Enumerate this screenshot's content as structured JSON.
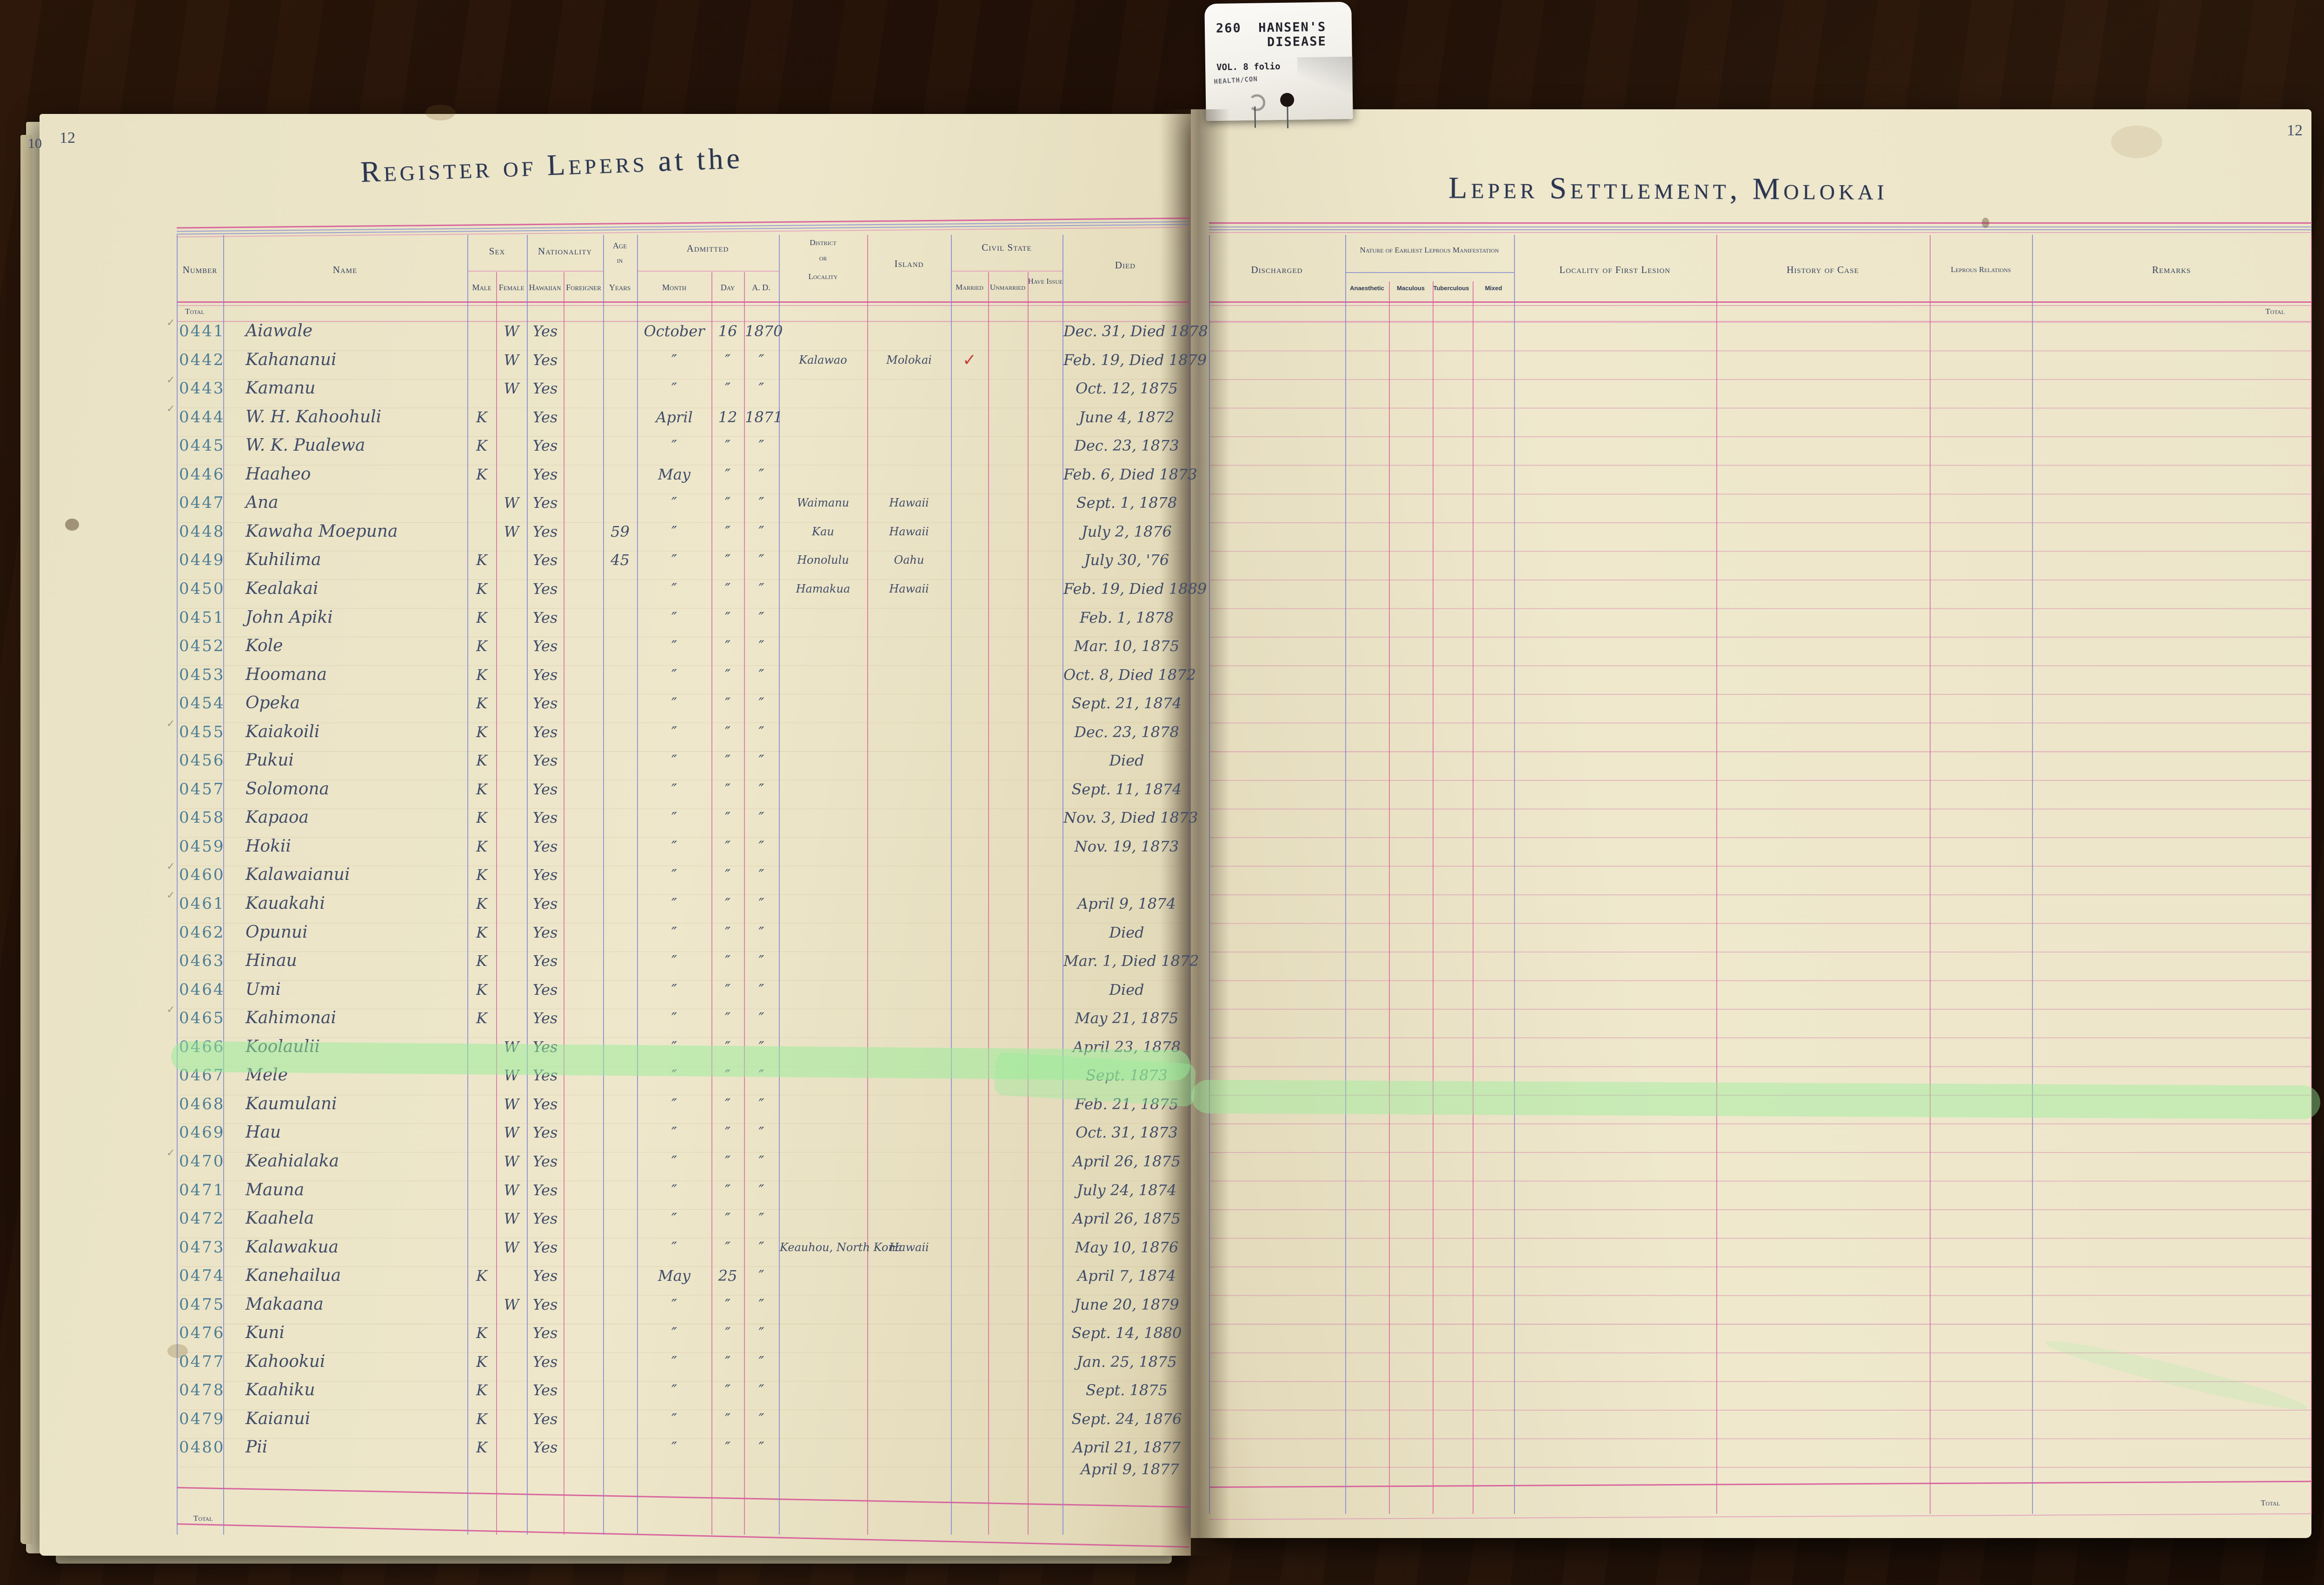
{
  "tab": {
    "number_and_title": "260  HANSEN'S\n      DISEASE",
    "volume": "VOL. 8 folio",
    "department": "HEALTH/CON"
  },
  "left_page": {
    "page_number_under": "10",
    "page_number": "12",
    "title_main": "Register of Lepers",
    "title_suffix": " at the",
    "headers": {
      "number": "Number",
      "name": "Name",
      "sex": "Sex",
      "male": "Male",
      "female": "Female",
      "nationality": "Nationality",
      "hawaiian": "Hawaiian",
      "foreigner": "Foreigner",
      "age_1": "Age",
      "age_2": "in",
      "age_3": "Years",
      "admitted": "Admitted",
      "month": "Month",
      "day": "Day",
      "ad": "A. D.",
      "district_1": "District",
      "district_2": "or",
      "district_3": "Locality",
      "island": "Island",
      "civil_state": "Civil State",
      "married": "Married",
      "unmarried": "Unmarried",
      "have_issue": "Have Issue",
      "died": "Died"
    },
    "total_top": "Total",
    "total_bottom": "Total",
    "extra_died_line": "April 9, 1877",
    "rows": [
      {
        "num": "0441",
        "name": "Aiawale",
        "female": "W",
        "haw": "Yes",
        "mo": "October",
        "dy": "16",
        "yr": "1870",
        "died": "Dec. 31, Died 1878",
        "tick": true
      },
      {
        "num": "0442",
        "name": "Kahananui",
        "female": "W",
        "haw": "Yes",
        "mo": "″",
        "dy": "″",
        "yr": "″",
        "dist": "Kalawao",
        "isl": "Molokai",
        "mar": "✓",
        "died": "Feb. 19, Died 1879"
      },
      {
        "num": "0443",
        "name": "Kamanu",
        "female": "W",
        "haw": "Yes",
        "mo": "″",
        "dy": "″",
        "yr": "″",
        "died": "Oct. 12, 1875",
        "tick": true
      },
      {
        "num": "0444",
        "name": "W. H. Kahoohuli",
        "male": "K",
        "haw": "Yes",
        "mo": "April",
        "dy": "12",
        "yr": "1871",
        "died": "June 4, 1872",
        "tick": true
      },
      {
        "num": "0445",
        "name": "W. K. Pualewa",
        "male": "K",
        "haw": "Yes",
        "mo": "″",
        "dy": "″",
        "yr": "″",
        "died": "Dec. 23, 1873"
      },
      {
        "num": "0446",
        "name": "Haaheo",
        "male": "K",
        "haw": "Yes",
        "mo": "May",
        "dy": "″",
        "yr": "″",
        "died": "Feb. 6, Died 1873"
      },
      {
        "num": "0447",
        "name": "Ana",
        "female": "W",
        "haw": "Yes",
        "mo": "″",
        "dy": "″",
        "yr": "″",
        "dist": "Waimanu",
        "isl": "Hawaii",
        "died": "Sept. 1, 1878"
      },
      {
        "num": "0448",
        "name": "Kawaha Moepuna",
        "female": "W",
        "haw": "Yes",
        "age": "59",
        "mo": "″",
        "dy": "″",
        "yr": "″",
        "dist": "Kau",
        "isl": "Hawaii",
        "died": "July 2, 1876"
      },
      {
        "num": "0449",
        "name": "Kuhilima",
        "male": "K",
        "haw": "Yes",
        "age": "45",
        "mo": "″",
        "dy": "″",
        "yr": "″",
        "dist": "Honolulu",
        "isl": "Oahu",
        "died": "July 30, '76"
      },
      {
        "num": "0450",
        "name": "Kealakai",
        "male": "K",
        "haw": "Yes",
        "mo": "″",
        "dy": "″",
        "yr": "″",
        "dist": "Hamakua",
        "isl": "Hawaii",
        "died": "Feb. 19, Died 1889"
      },
      {
        "num": "0451",
        "name": "John Apiki",
        "male": "K",
        "haw": "Yes",
        "mo": "″",
        "dy": "″",
        "yr": "″",
        "died": "Feb. 1, 1878"
      },
      {
        "num": "0452",
        "name": "Kole",
        "male": "K",
        "haw": "Yes",
        "mo": "″",
        "dy": "″",
        "yr": "″",
        "died": "Mar. 10, 1875"
      },
      {
        "num": "0453",
        "name": "Hoomana",
        "male": "K",
        "haw": "Yes",
        "mo": "″",
        "dy": "″",
        "yr": "″",
        "died": "Oct. 8, Died 1872"
      },
      {
        "num": "0454",
        "name": "Opeka",
        "male": "K",
        "haw": "Yes",
        "mo": "″",
        "dy": "″",
        "yr": "″",
        "died": "Sept. 21, 1874"
      },
      {
        "num": "0455",
        "name": "Kaiakoili",
        "male": "K",
        "haw": "Yes",
        "mo": "″",
        "dy": "″",
        "yr": "″",
        "died": "Dec. 23, 1878",
        "tick": true
      },
      {
        "num": "0456",
        "name": "Pukui",
        "male": "K",
        "haw": "Yes",
        "mo": "″",
        "dy": "″",
        "yr": "″",
        "died": "Died"
      },
      {
        "num": "0457",
        "name": "Solomona",
        "male": "K",
        "haw": "Yes",
        "mo": "″",
        "dy": "″",
        "yr": "″",
        "died": "Sept. 11, 1874"
      },
      {
        "num": "0458",
        "name": "Kapaoa",
        "male": "K",
        "haw": "Yes",
        "mo": "″",
        "dy": "″",
        "yr": "″",
        "died": "Nov. 3, Died 1873"
      },
      {
        "num": "0459",
        "name": "Hokii",
        "male": "K",
        "haw": "Yes",
        "mo": "″",
        "dy": "″",
        "yr": "″",
        "died": "Nov. 19, 1873"
      },
      {
        "num": "0460",
        "name": "Kalawaianui",
        "male": "K",
        "haw": "Yes",
        "mo": "″",
        "dy": "″",
        "yr": "″",
        "died": "",
        "tick": true
      },
      {
        "num": "0461",
        "name": "Kauakahi",
        "male": "K",
        "haw": "Yes",
        "mo": "″",
        "dy": "″",
        "yr": "″",
        "died": "April 9, 1874",
        "tick": true
      },
      {
        "num": "0462",
        "name": "Opunui",
        "male": "K",
        "haw": "Yes",
        "mo": "″",
        "dy": "″",
        "yr": "″",
        "died": "Died"
      },
      {
        "num": "0463",
        "name": "Hinau",
        "male": "K",
        "haw": "Yes",
        "mo": "″",
        "dy": "″",
        "yr": "″",
        "died": "Mar. 1, Died 1872"
      },
      {
        "num": "0464",
        "name": "Umi",
        "male": "K",
        "haw": "Yes",
        "mo": "″",
        "dy": "″",
        "yr": "″",
        "died": "Died"
      },
      {
        "num": "0465",
        "name": "Kahimonai",
        "male": "K",
        "haw": "Yes",
        "mo": "″",
        "dy": "″",
        "yr": "″",
        "died": "May 21, 1875",
        "tick": true
      },
      {
        "num": "0466",
        "name": "Koolaulii",
        "female": "W",
        "haw": "Yes",
        "mo": "″",
        "dy": "″",
        "yr": "″",
        "died": "April 23, 1878"
      },
      {
        "num": "0467",
        "name": "Mele",
        "female": "W",
        "haw": "Yes",
        "mo": "″",
        "dy": "″",
        "yr": "″",
        "died": "Sept.  1873",
        "hl": true
      },
      {
        "num": "0468",
        "name": "Kaumulani",
        "female": "W",
        "haw": "Yes",
        "mo": "″",
        "dy": "″",
        "yr": "″",
        "died": "Feb. 21, 1875"
      },
      {
        "num": "0469",
        "name": "Hau",
        "female": "W",
        "haw": "Yes",
        "mo": "″",
        "dy": "″",
        "yr": "″",
        "died": "Oct. 31, 1873"
      },
      {
        "num": "0470",
        "name": "Keahialaka",
        "female": "W",
        "haw": "Yes",
        "mo": "″",
        "dy": "″",
        "yr": "″",
        "died": "April 26, 1875",
        "tick": true
      },
      {
        "num": "0471",
        "name": "Mauna",
        "female": "W",
        "haw": "Yes",
        "mo": "″",
        "dy": "″",
        "yr": "″",
        "died": "July 24, 1874"
      },
      {
        "num": "0472",
        "name": "Kaahela",
        "female": "W",
        "haw": "Yes",
        "mo": "″",
        "dy": "″",
        "yr": "″",
        "died": "April 26, 1875"
      },
      {
        "num": "0473",
        "name": "Kalawakua",
        "female": "W",
        "haw": "Yes",
        "mo": "″",
        "dy": "″",
        "yr": "″",
        "dist": "Keauhou, North Kona",
        "isl": "Hawaii",
        "died": "May 10, 1876"
      },
      {
        "num": "0474",
        "name": "Kanehailua",
        "male": "K",
        "haw": "Yes",
        "mo": "May",
        "dy": "25",
        "yr": "″",
        "died": "April 7, 1874"
      },
      {
        "num": "0475",
        "name": "Makaana",
        "female": "W",
        "haw": "Yes",
        "mo": "″",
        "dy": "″",
        "yr": "″",
        "died": "June 20, 1879"
      },
      {
        "num": "0476",
        "name": "Kuni",
        "male": "K",
        "haw": "Yes",
        "mo": "″",
        "dy": "″",
        "yr": "″",
        "died": "Sept. 14, 1880"
      },
      {
        "num": "0477",
        "name": "Kahookui",
        "male": "K",
        "haw": "Yes",
        "mo": "″",
        "dy": "″",
        "yr": "″",
        "died": "Jan. 25, 1875"
      },
      {
        "num": "0478",
        "name": "Kaahiku",
        "male": "K",
        "haw": "Yes",
        "mo": "″",
        "dy": "″",
        "yr": "″",
        "died": "Sept.  1875"
      },
      {
        "num": "0479",
        "name": "Kaianui",
        "male": "K",
        "haw": "Yes",
        "mo": "″",
        "dy": "″",
        "yr": "″",
        "died": "Sept. 24, 1876"
      },
      {
        "num": "0480",
        "name": "Pii",
        "male": "K",
        "haw": "Yes",
        "mo": "″",
        "dy": "″",
        "yr": "″",
        "died": "April 21, 1877"
      }
    ]
  },
  "right_page": {
    "page_number": "12",
    "title": "Leper Settlement, Molokai",
    "headers": {
      "discharged": "Discharged",
      "nature_group": "Nature of Earliest Leprous Manifestation",
      "anaesthetic": "Anaesthetic",
      "maculous": "Maculous",
      "tuberculous": "Tuberculous",
      "mixed": "Mixed",
      "locality": "Locality of First Lesion",
      "history": "History of Case",
      "relations": "Leprous Relations",
      "remarks": "Remarks"
    },
    "total_top": "Total",
    "total_bottom": "Total"
  },
  "colors": {
    "rule_pink": "#d65098",
    "rule_blue": "#8085d5",
    "ink": "#404c68",
    "number_ink": "#4d7d95",
    "highlight_green": "#96ee98",
    "check_red": "#c2403a"
  }
}
